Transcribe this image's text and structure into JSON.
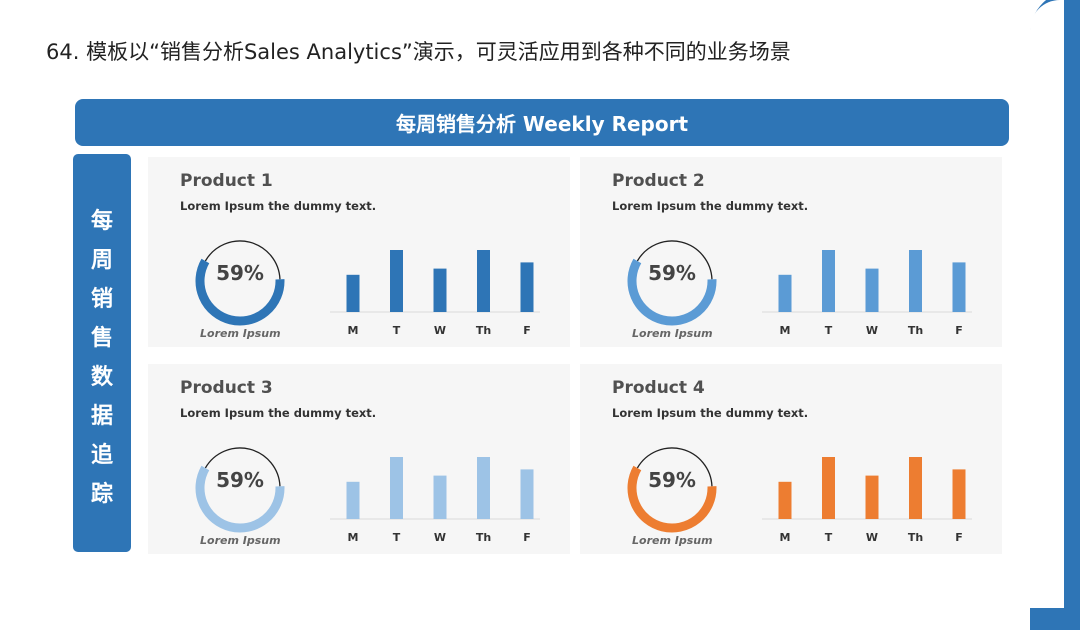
{
  "page_title": "64. 模板以“销售分析Sales Analytics”演示，可灵活应用到各种不同的业务场景",
  "banner_title": "每周销售分析 Weekly Report",
  "side_label_chars": [
    "每",
    "周",
    "销",
    "售",
    "数",
    "据",
    "追",
    "踪"
  ],
  "chart_data": [
    {
      "type": "bar",
      "title": "Product 1",
      "subtitle": "Lorem Ipsum the dummy text.",
      "donut": {
        "value": 59,
        "label": "59%",
        "caption": "Lorem Ipsum"
      },
      "categories": [
        "M",
        "T",
        "W",
        "Th",
        "F"
      ],
      "values": [
        60,
        100,
        70,
        100,
        80
      ],
      "ylim": [
        0,
        100
      ],
      "color": "#2e75b6"
    },
    {
      "type": "bar",
      "title": "Product 2",
      "subtitle": "Lorem Ipsum the dummy text.",
      "donut": {
        "value": 59,
        "label": "59%",
        "caption": "Lorem Ipsum"
      },
      "categories": [
        "M",
        "T",
        "W",
        "Th",
        "F"
      ],
      "values": [
        60,
        100,
        70,
        100,
        80
      ],
      "ylim": [
        0,
        100
      ],
      "color": "#5b9bd5"
    },
    {
      "type": "bar",
      "title": "Product 3",
      "subtitle": "Lorem Ipsum the dummy text.",
      "donut": {
        "value": 59,
        "label": "59%",
        "caption": "Lorem Ipsum"
      },
      "categories": [
        "M",
        "T",
        "W",
        "Th",
        "F"
      ],
      "values": [
        60,
        100,
        70,
        100,
        80
      ],
      "ylim": [
        0,
        100
      ],
      "color": "#9dc3e6"
    },
    {
      "type": "bar",
      "title": "Product 4",
      "subtitle": "Lorem Ipsum the dummy text.",
      "donut": {
        "value": 59,
        "label": "59%",
        "caption": "Lorem Ipsum"
      },
      "categories": [
        "M",
        "T",
        "W",
        "Th",
        "F"
      ],
      "values": [
        60,
        100,
        70,
        100,
        80
      ],
      "ylim": [
        0,
        100
      ],
      "color": "#ed7d31"
    }
  ]
}
